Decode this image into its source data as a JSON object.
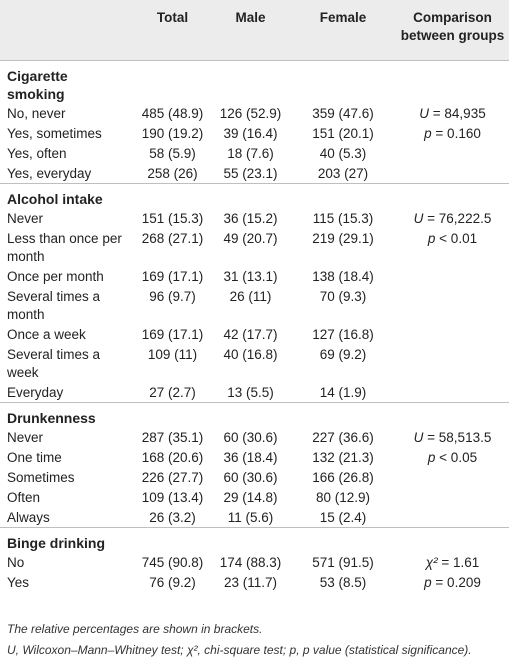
{
  "header": {
    "total": "Total",
    "male": "Male",
    "female": "Female",
    "comparison_line1": "Comparison",
    "comparison_line2": "between groups"
  },
  "sections": [
    {
      "title_line1": "Cigarette",
      "title_line2": "smoking",
      "rows": [
        {
          "label": "No, never",
          "total": "485 (48.9)",
          "male": "126 (52.9)",
          "female": "359 (47.6)"
        },
        {
          "label": "Yes, sometimes",
          "total": "190 (19.2)",
          "male": "39 (16.4)",
          "female": "151 (20.1)"
        },
        {
          "label": "Yes, often",
          "total": "58 (5.9)",
          "male": "18 (7.6)",
          "female": "40 (5.3)"
        },
        {
          "label": "Yes, everyday",
          "total": "258 (26)",
          "male": "55 (23.1)",
          "female": "203 (27)"
        }
      ],
      "stat_symbol": "U",
      "stat_value": " = 84,935",
      "p_symbol": "p",
      "p_value": " = 0.160"
    },
    {
      "title_line1": "Alcohol intake",
      "rows": [
        {
          "label": "Never",
          "total": "151 (15.3)",
          "male": "36 (15.2)",
          "female": "115 (15.3)"
        },
        {
          "label": "Less than once per month",
          "total": "268 (27.1)",
          "male": "49 (20.7)",
          "female": "219 (29.1)"
        },
        {
          "label": "Once per month",
          "total": "169 (17.1)",
          "male": "31 (13.1)",
          "female": "138 (18.4)"
        },
        {
          "label": "Several times a month",
          "total": "96 (9.7)",
          "male": "26 (11)",
          "female": "70 (9.3)"
        },
        {
          "label": "Once a week",
          "total": "169 (17.1)",
          "male": "42 (17.7)",
          "female": "127 (16.8)"
        },
        {
          "label": "Several times a week",
          "total": "109 (11)",
          "male": "40 (16.8)",
          "female": "69 (9.2)"
        },
        {
          "label": "Everyday",
          "total": "27 (2.7)",
          "male": "13 (5.5)",
          "female": "14 (1.9)"
        }
      ],
      "stat_symbol": "U",
      "stat_value": " = 76,222.5",
      "p_symbol": "p",
      "p_value": " < 0.01"
    },
    {
      "title_line1": "Drunkenness",
      "rows": [
        {
          "label": "Never",
          "total": "287 (35.1)",
          "male": "60 (30.6)",
          "female": "227 (36.6)"
        },
        {
          "label": "One time",
          "total": "168 (20.6)",
          "male": "36 (18.4)",
          "female": "132 (21.3)"
        },
        {
          "label": "Sometimes",
          "total": "226 (27.7)",
          "male": "60 (30.6)",
          "female": "166 (26.8)"
        },
        {
          "label": "Often",
          "total": "109 (13.4)",
          "male": "29 (14.8)",
          "female": "80 (12.9)"
        },
        {
          "label": "Always",
          "total": "26 (3.2)",
          "male": "11 (5.6)",
          "female": "15 (2.4)"
        }
      ],
      "stat_symbol": "U",
      "stat_value": " = 58,513.5",
      "p_symbol": "p",
      "p_value": " < 0.05"
    },
    {
      "title_line1": "Binge drinking",
      "rows": [
        {
          "label": "No",
          "total": "745 (90.8)",
          "male": "174 (88.3)",
          "female": "571 (91.5)"
        },
        {
          "label": "Yes",
          "total": "76 (9.2)",
          "male": "23 (11.7)",
          "female": "53 (8.5)"
        }
      ],
      "stat_symbol": "χ²",
      "stat_value": " = 1.61",
      "p_symbol": "p",
      "p_value": " = 0.209"
    }
  ],
  "footnotes": {
    "line1": "The relative percentages are shown in brackets.",
    "line2": "U, Wilcoxon–Mann–Whitney test; χ², chi-square test; p, p value (statistical significance)."
  }
}
